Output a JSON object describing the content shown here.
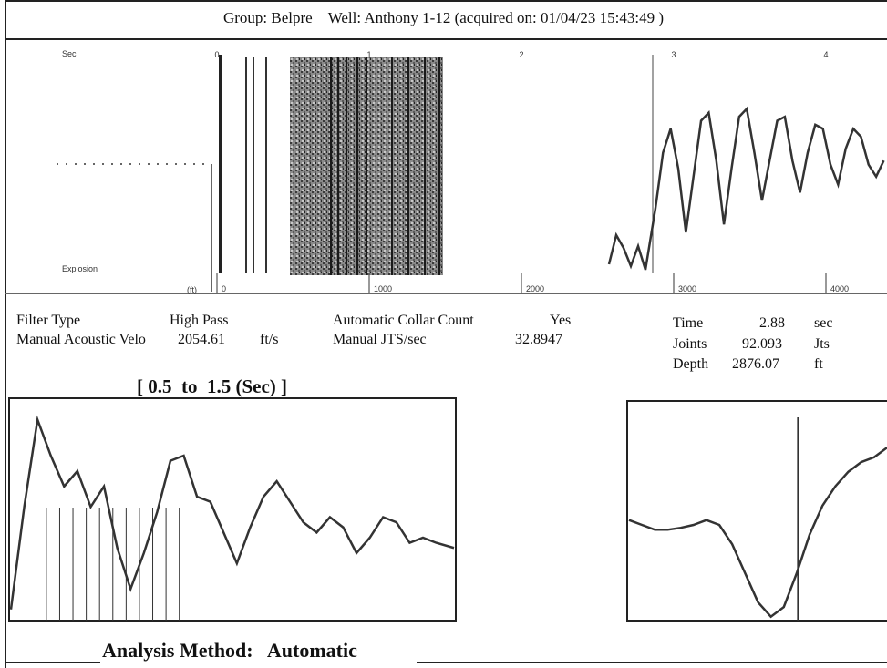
{
  "header": {
    "group_label": "Group:",
    "group_value": "Belpre",
    "well_label": "Well:",
    "well_value": "Anthony 1-12",
    "acquired_text": "(acquired on: 01/04/23 15:43:49 )"
  },
  "params": {
    "filter_type_label": "Filter Type",
    "filter_type_value": "High Pass",
    "velocity_label": "Manual Acoustic Velo",
    "velocity_value": "2054.61",
    "velocity_unit": "ft/s",
    "collar_count_label": "Automatic Collar Count",
    "collar_count_value": "Yes",
    "jts_label": "Manual JTS/sec",
    "jts_value": "32.8947",
    "time_label": "Time",
    "time_value": "2.88",
    "time_unit": "sec",
    "joints_label": "Joints",
    "joints_value": "92.093",
    "joints_unit": "Jts",
    "depth_label": "Depth",
    "depth_value": "2876.07",
    "depth_unit": "ft"
  },
  "zoom_range_text": "[ 0.5  to  1.5 (Sec) ]",
  "analysis_method_text": "Analysis Method:   Automatic",
  "chart_data": [
    {
      "type": "line",
      "x_tick_labels": [
        "0",
        "1",
        "2",
        "3",
        "4"
      ],
      "bottom_tick_labels": [
        "0",
        "1000",
        "2000",
        "3000",
        "4000"
      ],
      "left_text": "Sec",
      "left_bottom_text": "Explosion",
      "left_unit_text": "(ft)",
      "overview_trace_x": [
        2.88,
        2.93,
        2.98,
        3.03,
        3.08,
        3.13,
        3.18,
        3.23,
        3.28,
        3.33,
        3.38,
        3.43,
        3.48,
        3.53,
        3.58,
        3.63,
        3.68,
        3.73,
        3.78,
        3.83,
        3.88,
        3.93,
        3.98,
        4.03,
        4.08,
        4.13,
        4.18,
        4.23,
        4.28,
        4.33,
        4.38
      ],
      "overview_trace_y": [
        -0.3,
        0.4,
        0.7,
        0.2,
        -0.6,
        0.1,
        0.8,
        0.9,
        0.3,
        -0.5,
        0.2,
        0.85,
        0.95,
        0.4,
        -0.2,
        0.3,
        0.8,
        0.85,
        0.3,
        -0.1,
        0.4,
        0.75,
        0.7,
        0.25,
        0.0,
        0.45,
        0.7,
        0.6,
        0.25,
        0.1,
        0.3
      ],
      "selected_window_sec": [
        0.5,
        1.5
      ]
    },
    {
      "type": "line",
      "title": "[ 0.5  to  1.5 (Sec) ]",
      "x_range": [
        0.5,
        1.5
      ],
      "x": [
        0.5,
        0.53,
        0.56,
        0.59,
        0.62,
        0.65,
        0.68,
        0.71,
        0.74,
        0.77,
        0.8,
        0.83,
        0.86,
        0.89,
        0.92,
        0.95,
        0.98,
        1.01,
        1.04,
        1.07,
        1.1,
        1.13,
        1.16,
        1.19,
        1.22,
        1.25,
        1.28,
        1.31,
        1.34,
        1.37,
        1.4,
        1.43,
        1.46,
        1.5
      ],
      "y": [
        -0.9,
        0.1,
        0.95,
        0.6,
        0.3,
        0.45,
        0.1,
        0.3,
        -0.3,
        -0.7,
        -0.35,
        0.05,
        0.55,
        0.6,
        0.2,
        0.15,
        -0.15,
        -0.45,
        -0.1,
        0.2,
        0.35,
        0.15,
        -0.05,
        -0.15,
        0.0,
        -0.1,
        -0.35,
        -0.2,
        0.0,
        -0.05,
        -0.25,
        -0.2,
        -0.25,
        -0.3
      ],
      "collar_markers_sec": [
        0.58,
        0.61,
        0.64,
        0.67,
        0.7,
        0.73,
        0.76,
        0.79,
        0.82,
        0.85,
        0.88
      ]
    },
    {
      "type": "line",
      "x": [
        0,
        1,
        2,
        3,
        4,
        5,
        6,
        7,
        8,
        9,
        10,
        11,
        12,
        13,
        14,
        15,
        16,
        17,
        18,
        19,
        20
      ],
      "y": [
        0.05,
        0.0,
        -0.05,
        -0.05,
        -0.03,
        0.0,
        0.05,
        0.0,
        -0.2,
        -0.5,
        -0.8,
        -0.95,
        -0.85,
        -0.5,
        -0.1,
        0.2,
        0.4,
        0.55,
        0.65,
        0.7,
        0.8
      ],
      "marker_x": 13.1
    }
  ]
}
